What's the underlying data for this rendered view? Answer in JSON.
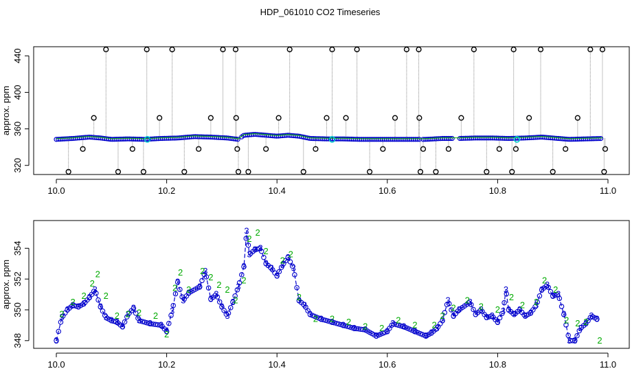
{
  "figure": {
    "title": "HDP_061010  CO2 Timeseries"
  },
  "colors": {
    "outlier": "#000000",
    "series_a": "#0000cc",
    "series_b": "#00aa00",
    "highlight": "#00cccc",
    "trace": "#888888",
    "frame": "#000000"
  },
  "chart_data": [
    {
      "type": "scatter",
      "title": "HDP_061010  CO2 Timeseries",
      "xlabel": "",
      "ylabel": "approx. ppm",
      "xlim": [
        10.0,
        11.0
      ],
      "ylim": [
        310,
        450
      ],
      "xticks": [
        10.0,
        10.2,
        10.4,
        10.6,
        10.8,
        11.0
      ],
      "xtick_labels": [
        "10.0",
        "10.2",
        "10.4",
        "10.6",
        "10.8",
        "11.0"
      ],
      "yticks": [
        320,
        360,
        400,
        440
      ],
      "ytick_labels": [
        "320",
        "360",
        "400",
        "440"
      ],
      "grid": false,
      "baseline": [
        [
          10.0,
          348.5
        ],
        [
          10.03,
          349.5
        ],
        [
          10.06,
          351
        ],
        [
          10.08,
          350
        ],
        [
          10.1,
          348.5
        ],
        [
          10.13,
          349
        ],
        [
          10.16,
          348.5
        ],
        [
          10.19,
          349.5
        ],
        [
          10.22,
          350
        ],
        [
          10.25,
          351.5
        ],
        [
          10.28,
          351
        ],
        [
          10.31,
          350
        ],
        [
          10.33,
          348.5
        ],
        [
          10.34,
          353
        ],
        [
          10.36,
          354
        ],
        [
          10.38,
          353
        ],
        [
          10.4,
          352
        ],
        [
          10.42,
          353
        ],
        [
          10.44,
          352
        ],
        [
          10.46,
          349.5
        ],
        [
          10.49,
          349
        ],
        [
          10.52,
          349
        ],
        [
          10.55,
          348.5
        ],
        [
          10.58,
          348.5
        ],
        [
          10.61,
          348.5
        ],
        [
          10.64,
          348.5
        ],
        [
          10.66,
          348.5
        ],
        [
          10.67,
          348.5
        ],
        [
          10.7,
          349.5
        ],
        [
          10.72,
          349.5
        ],
        [
          10.73,
          349.5
        ],
        [
          10.76,
          350
        ],
        [
          10.79,
          350
        ],
        [
          10.82,
          349.5
        ],
        [
          10.85,
          350
        ],
        [
          10.88,
          351
        ],
        [
          10.9,
          350
        ],
        [
          10.93,
          348.5
        ],
        [
          10.96,
          349
        ],
        [
          10.99,
          349.5
        ]
      ],
      "gaps": [
        [
          10.33,
          10.335
        ],
        [
          10.66,
          10.665
        ],
        [
          10.72,
          10.73
        ]
      ],
      "outliers": [
        [
          10.022,
          313
        ],
        [
          10.048,
          338
        ],
        [
          10.068,
          372
        ],
        [
          10.09,
          447
        ],
        [
          10.112,
          313
        ],
        [
          10.138,
          338
        ],
        [
          10.158,
          313
        ],
        [
          10.164,
          447
        ],
        [
          10.187,
          372
        ],
        [
          10.21,
          447
        ],
        [
          10.232,
          313
        ],
        [
          10.258,
          338
        ],
        [
          10.28,
          372
        ],
        [
          10.302,
          447
        ],
        [
          10.325,
          447
        ],
        [
          10.326,
          372
        ],
        [
          10.328,
          338
        ],
        [
          10.33,
          313
        ],
        [
          10.348,
          313
        ],
        [
          10.38,
          338
        ],
        [
          10.403,
          372
        ],
        [
          10.423,
          447
        ],
        [
          10.448,
          313
        ],
        [
          10.47,
          338
        ],
        [
          10.49,
          372
        ],
        [
          10.5,
          447
        ],
        [
          10.525,
          372
        ],
        [
          10.545,
          447
        ],
        [
          10.568,
          313
        ],
        [
          10.592,
          338
        ],
        [
          10.614,
          372
        ],
        [
          10.635,
          447
        ],
        [
          10.657,
          447
        ],
        [
          10.658,
          372
        ],
        [
          10.66,
          313
        ],
        [
          10.665,
          338
        ],
        [
          10.688,
          313
        ],
        [
          10.711,
          338
        ],
        [
          10.734,
          372
        ],
        [
          10.757,
          447
        ],
        [
          10.78,
          313
        ],
        [
          10.803,
          338
        ],
        [
          10.826,
          313
        ],
        [
          10.829,
          447
        ],
        [
          10.833,
          338
        ],
        [
          10.857,
          372
        ],
        [
          10.878,
          447
        ],
        [
          10.9,
          313
        ],
        [
          10.923,
          338
        ],
        [
          10.945,
          372
        ],
        [
          10.968,
          447
        ],
        [
          10.99,
          447
        ],
        [
          10.993,
          313
        ],
        [
          10.995,
          338
        ]
      ],
      "highlights": [
        [
          10.165,
          348.5
        ],
        [
          10.5,
          348.5
        ],
        [
          10.835,
          348.5
        ]
      ]
    },
    {
      "type": "line",
      "xlabel": "",
      "ylabel": "approx. ppm",
      "xlim": [
        10.0,
        11.0
      ],
      "ylim": [
        347.5,
        355.8
      ],
      "xticks": [
        10.0,
        10.2,
        10.4,
        10.6,
        10.8,
        11.0
      ],
      "xtick_labels": [
        "10.0",
        "10.2",
        "10.4",
        "10.6",
        "10.8",
        "11.0"
      ],
      "yticks": [
        348,
        350,
        352,
        354
      ],
      "ytick_labels": [
        "348",
        "350",
        "352",
        "354"
      ],
      "grid": false,
      "series": [
        {
          "marker": "3",
          "points": [
            [
              10.0,
              348.0
            ],
            [
              10.01,
              349.5
            ],
            [
              10.02,
              350.0
            ],
            [
              10.03,
              350.3
            ],
            [
              10.04,
              350.2
            ],
            [
              10.05,
              350.4
            ],
            [
              10.06,
              350.8
            ],
            [
              10.07,
              351.3
            ],
            [
              10.08,
              350.2
            ],
            [
              10.09,
              349.5
            ],
            [
              10.1,
              349.3
            ],
            [
              10.11,
              349.2
            ],
            [
              10.12,
              348.9
            ],
            [
              10.13,
              349.7
            ],
            [
              10.14,
              350.1
            ],
            [
              10.15,
              349.3
            ],
            [
              10.17,
              349.1
            ],
            [
              10.19,
              349.0
            ],
            [
              10.2,
              348.6
            ],
            [
              10.21,
              349.9
            ],
            [
              10.22,
              351.8
            ],
            [
              10.23,
              350.6
            ],
            [
              10.24,
              351.1
            ],
            [
              10.26,
              351.5
            ],
            [
              10.27,
              352.5
            ],
            [
              10.28,
              350.7
            ],
            [
              10.29,
              351.0
            ],
            [
              10.3,
              350.2
            ],
            [
              10.31,
              349.6
            ],
            [
              10.32,
              350.5
            ],
            [
              10.33,
              351.5
            ],
            [
              10.34,
              352.8
            ],
            [
              10.345,
              355.1
            ],
            [
              10.35,
              353.6
            ],
            [
              10.36,
              353.9
            ],
            [
              10.37,
              354.0
            ],
            [
              10.38,
              353.0
            ],
            [
              10.39,
              352.7
            ],
            [
              10.4,
              352.2
            ],
            [
              10.41,
              352.9
            ],
            [
              10.42,
              353.4
            ],
            [
              10.43,
              352.7
            ],
            [
              10.44,
              350.6
            ],
            [
              10.45,
              350.3
            ],
            [
              10.46,
              349.7
            ],
            [
              10.48,
              349.4
            ],
            [
              10.5,
              349.2
            ],
            [
              10.52,
              349.0
            ],
            [
              10.54,
              348.8
            ],
            [
              10.56,
              348.7
            ],
            [
              10.58,
              348.3
            ],
            [
              10.6,
              348.6
            ],
            [
              10.61,
              349.1
            ],
            [
              10.63,
              348.9
            ],
            [
              10.65,
              348.6
            ],
            [
              10.67,
              348.3
            ],
            [
              10.68,
              348.5
            ],
            [
              10.69,
              348.8
            ],
            [
              10.7,
              349.3
            ],
            [
              10.71,
              350.6
            ],
            [
              10.72,
              349.6
            ],
            [
              10.73,
              350.0
            ],
            [
              10.75,
              350.5
            ],
            [
              10.76,
              349.7
            ],
            [
              10.77,
              350.0
            ],
            [
              10.78,
              349.5
            ],
            [
              10.79,
              349.6
            ],
            [
              10.8,
              349.2
            ],
            [
              10.81,
              349.9
            ],
            [
              10.815,
              351.3
            ],
            [
              10.82,
              350.0
            ],
            [
              10.83,
              349.7
            ],
            [
              10.84,
              350.0
            ],
            [
              10.85,
              349.6
            ],
            [
              10.86,
              349.8
            ],
            [
              10.87,
              350.3
            ],
            [
              10.88,
              351.3
            ],
            [
              10.89,
              351.6
            ],
            [
              10.9,
              350.9
            ],
            [
              10.91,
              351.0
            ],
            [
              10.92,
              349.7
            ],
            [
              10.93,
              348.0
            ],
            [
              10.94,
              348.0
            ],
            [
              10.95,
              348.8
            ],
            [
              10.96,
              349.1
            ],
            [
              10.97,
              349.6
            ],
            [
              10.98,
              349.4
            ]
          ]
        },
        {
          "marker": "2",
          "points": [
            [
              10.01,
              349.7
            ],
            [
              10.03,
              350.5
            ],
            [
              10.05,
              350.9
            ],
            [
              10.065,
              351.7
            ],
            [
              10.075,
              352.3
            ],
            [
              10.09,
              350.9
            ],
            [
              10.11,
              349.6
            ],
            [
              10.13,
              349.7
            ],
            [
              10.15,
              349.8
            ],
            [
              10.18,
              349.6
            ],
            [
              10.2,
              348.4
            ],
            [
              10.215,
              351.4
            ],
            [
              10.225,
              352.4
            ],
            [
              10.24,
              351.3
            ],
            [
              10.265,
              352.5
            ],
            [
              10.28,
              352.1
            ],
            [
              10.295,
              351.6
            ],
            [
              10.31,
              351.3
            ],
            [
              10.325,
              350.6
            ],
            [
              10.34,
              351.9
            ],
            [
              10.35,
              354.6
            ],
            [
              10.365,
              355.0
            ],
            [
              10.38,
              353.8
            ],
            [
              10.41,
              353.2
            ],
            [
              10.425,
              353.6
            ],
            [
              10.44,
              350.8
            ],
            [
              10.47,
              349.4
            ],
            [
              10.5,
              349.4
            ],
            [
              10.53,
              349.2
            ],
            [
              10.56,
              348.9
            ],
            [
              10.59,
              348.8
            ],
            [
              10.62,
              349.3
            ],
            [
              10.65,
              349.0
            ],
            [
              10.685,
              349.0
            ],
            [
              10.7,
              349.6
            ],
            [
              10.72,
              350.1
            ],
            [
              10.745,
              350.6
            ],
            [
              10.77,
              350.2
            ],
            [
              10.8,
              350.0
            ],
            [
              10.825,
              350.8
            ],
            [
              10.845,
              350.3
            ],
            [
              10.87,
              350.5
            ],
            [
              10.885,
              351.9
            ],
            [
              10.905,
              351.3
            ],
            [
              10.925,
              349.3
            ],
            [
              10.945,
              349.1
            ],
            [
              10.96,
              349.2
            ],
            [
              10.985,
              348.0
            ]
          ]
        }
      ]
    }
  ]
}
